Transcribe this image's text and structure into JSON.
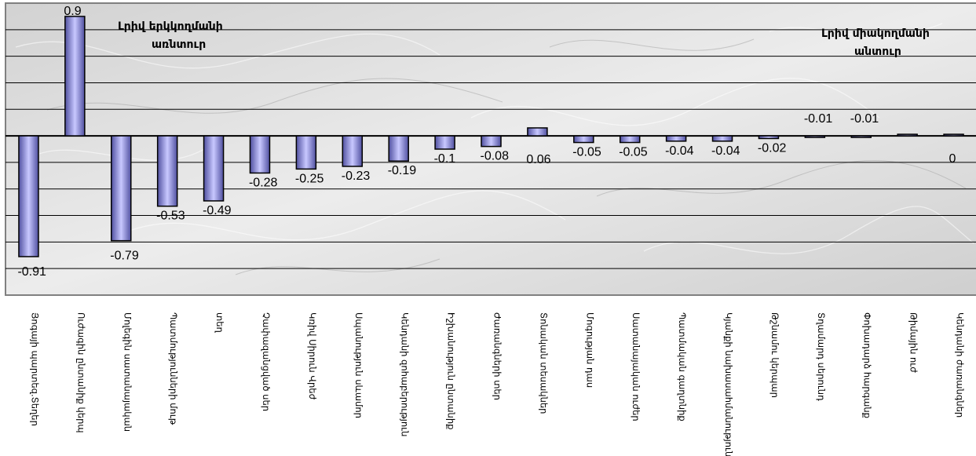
{
  "chart_data": {
    "type": "bar",
    "title": "",
    "xlabel": "",
    "ylabel": "",
    "ylim": [
      -1.2,
      1.0
    ],
    "grid": true,
    "legend": "none",
    "categories": [
      "Յոգայի պարտեզ.Տեղեր",
      "Ուժագին ընտանիք կերպ",
      "Մոլեգին սատանայական",
      "Պատմությունների մութ",
      "տեղ",
      "Չափազանցված սեր",
      "Կռիվ Սիրուն Վրեժ",
      "Սպանություն սևամոր",
      "Կենդանի զոհաբերություն",
      "Իշխանություն ընտանիք",
      "Ժառանգների տեր",
      "Տոնական տեսակներ",
      "Մոգության դաս",
      "Սատանայական ուժեր",
      "Պատմական գաղտնիք",
      "Կյանքի նախասահմանություն",
      "Թշնամու կերպար",
      "Տղամարդ սերունդ",
      "Փոխադարձ հարգանք",
      "Թիմային ուժ",
      "Կենդանի ժառանգներ"
    ],
    "values": [
      -0.91,
      0.9,
      -0.79,
      -0.53,
      -0.49,
      -0.28,
      -0.25,
      -0.23,
      -0.19,
      -0.1,
      -0.08,
      0.06,
      -0.05,
      -0.05,
      -0.04,
      -0.04,
      -0.02,
      -0.01,
      -0.01,
      0,
      0
    ],
    "value_labels": [
      "-0.91",
      "0.9",
      "-0.79",
      "-0.53",
      "-0.49",
      "-0.28",
      "-0.25",
      "-0.23",
      "-0.19",
      "-0.1",
      "-0.08",
      "0.06",
      "-0.05",
      "-0.05",
      "-0.04",
      "-0.04",
      "-0.02",
      "-0.01",
      "-0.01",
      "",
      "0"
    ],
    "annotations": {
      "left": [
        "Լրիվ երկկողմանի",
        "առնտուր"
      ],
      "right": [
        "Լրիվ միակողմանի",
        "անտուր"
      ]
    },
    "colors": {
      "bar_light": "#c8c8ff",
      "bar_dark": "#5050a0",
      "gridline": "#000000",
      "background": "#dcdcdc"
    }
  }
}
